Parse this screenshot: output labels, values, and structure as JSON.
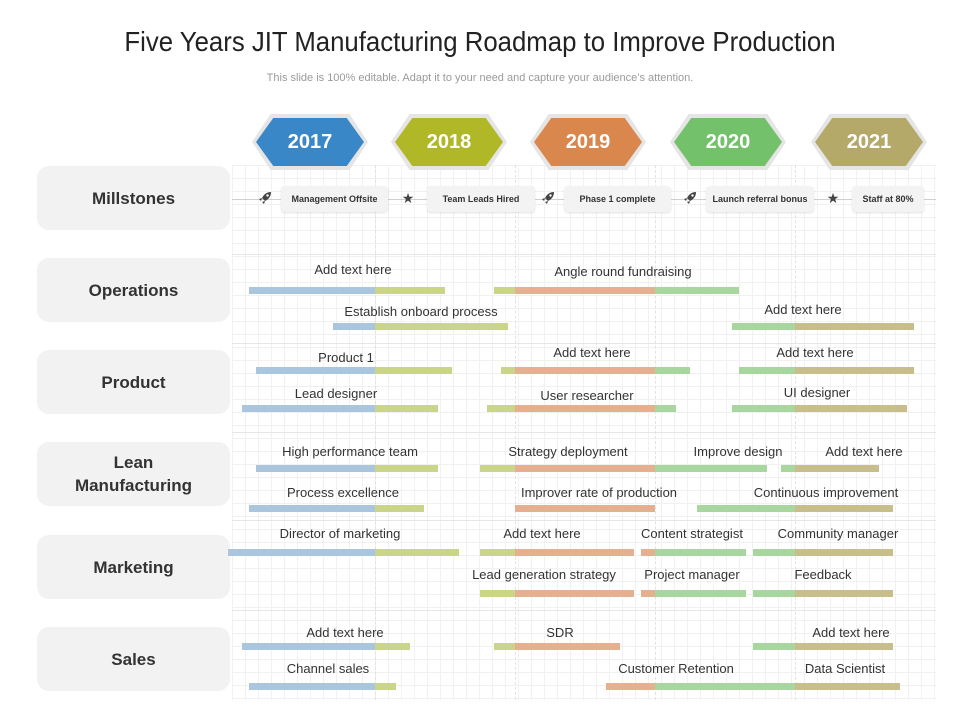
{
  "title": "Five Years JIT Manufacturing Roadmap to Improve Production",
  "subtitle": "This slide is 100% editable. Adapt it to your need and capture your audience’s attention.",
  "colors": {
    "2017": "#3a87c8",
    "2018": "#b0b827",
    "2019": "#d9874c",
    "2020": "#74c16b",
    "2021": "#b5a96a",
    "seg2017": "#a9c6de",
    "seg2018": "#cbd58a",
    "seg2019": "#e5b08f",
    "seg2020": "#a7d79f",
    "seg2021": "#c8be8c"
  },
  "years": [
    "2017",
    "2018",
    "2019",
    "2020",
    "2021"
  ],
  "rows": [
    "Millstones",
    "Operations",
    "Product",
    "Lean\nManufacturing",
    "Marketing",
    "Sales"
  ],
  "milestones": [
    {
      "label": "Management Offsite",
      "icon": "rocket-icon"
    },
    {
      "label": "Team Leads Hired",
      "icon": "star-icon"
    },
    {
      "label": "Phase 1 complete",
      "icon": "rocket-icon"
    },
    {
      "label": "Launch referral bonus",
      "icon": "rocket-icon"
    },
    {
      "label": "Staff at 80%",
      "icon": "star-icon"
    }
  ],
  "tasks": [
    {
      "row": "Operations",
      "label": "Add text here",
      "start": 2017.1,
      "end": 2018.5
    },
    {
      "row": "Operations",
      "label": "Angle round fundraising",
      "start": 2018.85,
      "end": 2020.6
    },
    {
      "row": "Operations",
      "label": "Establish onboard process",
      "start": 2017.7,
      "end": 2018.95
    },
    {
      "row": "Operations",
      "label": "Add text here",
      "start": 2020.55,
      "end": 2021.85
    },
    {
      "row": "Product",
      "label": "Product 1",
      "start": 2017.15,
      "end": 2018.55
    },
    {
      "row": "Product",
      "label": "Add text here",
      "start": 2018.9,
      "end": 2020.25
    },
    {
      "row": "Product",
      "label": "Add text here",
      "start": 2020.6,
      "end": 2021.85
    },
    {
      "row": "Product",
      "label": "Lead designer",
      "start": 2017.05,
      "end": 2018.45
    },
    {
      "row": "Product",
      "label": "User researcher",
      "start": 2018.8,
      "end": 2020.15
    },
    {
      "row": "Product",
      "label": "UI designer",
      "start": 2020.55,
      "end": 2021.8
    },
    {
      "row": "Lean Manufacturing",
      "label": "High performance team",
      "start": 2017.15,
      "end": 2018.45
    },
    {
      "row": "Lean Manufacturing",
      "label": "Strategy deployment",
      "start": 2018.75,
      "end": 2019.95
    },
    {
      "row": "Lean Manufacturing",
      "label": "Improve design",
      "start": 2019.95,
      "end": 2020.8
    },
    {
      "row": "Lean Manufacturing",
      "label": "Add text here",
      "start": 2020.9,
      "end": 2021.6
    },
    {
      "row": "Lean Manufacturing",
      "label": "Process excellence",
      "start": 2017.1,
      "end": 2018.35
    },
    {
      "row": "Lean Manufacturing",
      "label": "Improver rate of production",
      "start": 2019.0,
      "end": 2020.0
    },
    {
      "row": "Lean Manufacturing",
      "label": "Continuous improvement",
      "start": 2020.3,
      "end": 2021.7
    },
    {
      "row": "Marketing",
      "label": "Director of marketing",
      "start": 2016.95,
      "end": 2018.6
    },
    {
      "row": "Marketing",
      "label": "Add text here",
      "start": 2018.75,
      "end": 2019.85
    },
    {
      "row": "Marketing",
      "label": "Content strategist",
      "start": 2019.9,
      "end": 2020.65
    },
    {
      "row": "Marketing",
      "label": "Community manager",
      "start": 2020.7,
      "end": 2021.7
    },
    {
      "row": "Marketing",
      "label": "Lead generation strategy",
      "start": 2018.75,
      "end": 2019.85
    },
    {
      "row": "Marketing",
      "label": "Project manager",
      "start": 2019.9,
      "end": 2020.65
    },
    {
      "row": "Marketing",
      "label": "Feedback",
      "start": 2020.7,
      "end": 2021.7
    },
    {
      "row": "Sales",
      "label": "Add text here",
      "start": 2017.05,
      "end": 2018.25
    },
    {
      "row": "Sales",
      "label": "SDR",
      "start": 2018.85,
      "end": 2019.75
    },
    {
      "row": "Sales",
      "label": "Add text here",
      "start": 2020.7,
      "end": 2021.7
    },
    {
      "row": "Sales",
      "label": "Channel sales",
      "start": 2017.1,
      "end": 2018.15
    },
    {
      "row": "Sales",
      "label": "Customer Retention",
      "start": 2019.65,
      "end": 2020.75
    },
    {
      "row": "Sales",
      "label": "Data Scientist",
      "start": 2020.65,
      "end": 2021.75
    }
  ]
}
